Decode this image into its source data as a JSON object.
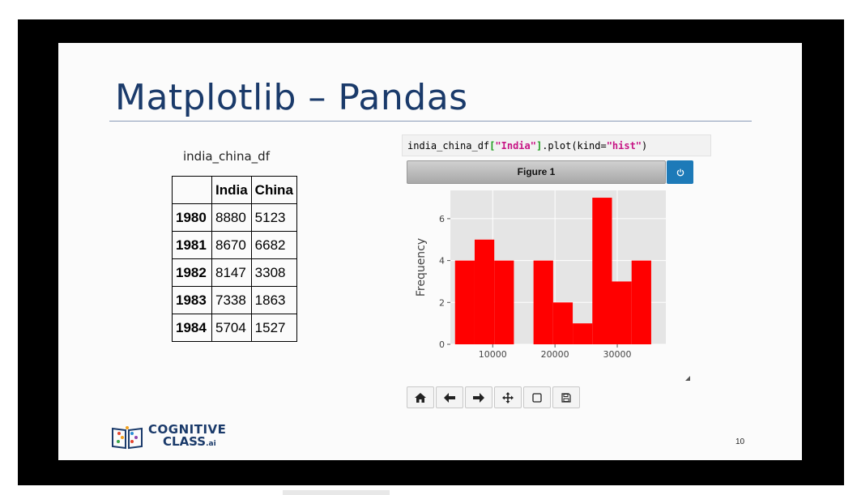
{
  "slide": {
    "title": "Matplotlib – Pandas",
    "df_label": "india_china_df",
    "page_number": "10"
  },
  "table": {
    "headers": [
      "",
      "India",
      "China"
    ],
    "rows": [
      {
        "index": "1980",
        "india": "8880",
        "china": "5123"
      },
      {
        "index": "1981",
        "india": "8670",
        "china": "6682"
      },
      {
        "index": "1982",
        "india": "8147",
        "china": "3308"
      },
      {
        "index": "1983",
        "india": "7338",
        "china": "1863"
      },
      {
        "index": "1984",
        "india": "5704",
        "china": "1527"
      }
    ]
  },
  "code": {
    "prefix": "india_china_df",
    "bracket_open": "[",
    "key": "\"India\"",
    "bracket_close": "]",
    "method": ".plot(kind=",
    "kind": "\"hist\"",
    "suffix": ")"
  },
  "figure": {
    "title": "Figure 1",
    "power_icon": "power-icon",
    "toolbar_icons": [
      "home-icon",
      "back-arrow-icon",
      "forward-arrow-icon",
      "pan-icon",
      "zoom-rect-icon",
      "save-icon"
    ]
  },
  "logo": {
    "line1": "COGNITIVE",
    "line2": "CLASS",
    "suffix": ".ai"
  },
  "chart_data": {
    "type": "bar",
    "title": "",
    "xlabel": "",
    "ylabel": "Frequency",
    "bar_color": "#ff0000",
    "background": "#e5e5e5",
    "grid": true,
    "xlim": [
      3200,
      37800
    ],
    "ylim": [
      0,
      7.35
    ],
    "xticks": [
      10000,
      20000,
      30000
    ],
    "yticks": [
      0,
      2,
      4,
      6
    ],
    "bins": [
      {
        "x0": 3950,
        "x1": 7100,
        "count": 4
      },
      {
        "x0": 7100,
        "x1": 10250,
        "count": 5
      },
      {
        "x0": 10250,
        "x1": 13400,
        "count": 4
      },
      {
        "x0": 13400,
        "x1": 16550,
        "count": 0
      },
      {
        "x0": 16550,
        "x1": 19700,
        "count": 4
      },
      {
        "x0": 19700,
        "x1": 22850,
        "count": 2
      },
      {
        "x0": 22850,
        "x1": 26000,
        "count": 1
      },
      {
        "x0": 26000,
        "x1": 29150,
        "count": 7
      },
      {
        "x0": 29150,
        "x1": 32300,
        "count": 3
      },
      {
        "x0": 32300,
        "x1": 35450,
        "count": 4
      }
    ]
  }
}
